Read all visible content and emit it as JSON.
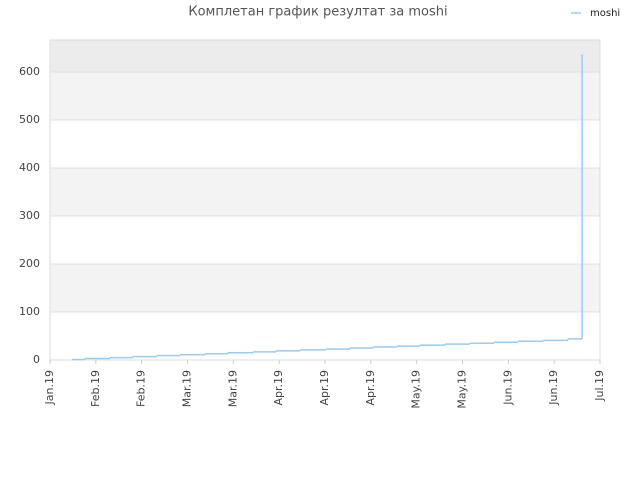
{
  "chart_data": {
    "type": "step-line",
    "title": "Комплетан график резултат за moshi",
    "x": [
      0.48,
      0.76,
      1.31,
      1.81,
      2.33,
      2.84,
      3.38,
      3.88,
      4.43,
      4.93,
      5.45,
      6.02,
      6.55,
      7.05,
      7.57,
      8.07,
      8.62,
      9.16,
      9.69,
      10.21,
      10.76,
      11.3,
      11.61
    ],
    "series": [
      {
        "name": "moshi",
        "color": "#99ccf2",
        "values": [
          1,
          3,
          5,
          7,
          9,
          11,
          13,
          15,
          17,
          19,
          21,
          23,
          25,
          27,
          29,
          31,
          33,
          35,
          37,
          39,
          41,
          44,
          635
        ]
      }
    ],
    "xlim": [
      0,
      12
    ],
    "xticks": [
      {
        "value": 0,
        "label": "Jan.19"
      },
      {
        "value": 1,
        "label": "Feb.19"
      },
      {
        "value": 2,
        "label": "Feb.19"
      },
      {
        "value": 3,
        "label": "Mar.19"
      },
      {
        "value": 4,
        "label": "Mar.19"
      },
      {
        "value": 5,
        "label": "Apr.19"
      },
      {
        "value": 6,
        "label": "Apr.19"
      },
      {
        "value": 7,
        "label": "Apr.19"
      },
      {
        "value": 8,
        "label": "May.19"
      },
      {
        "value": 9,
        "label": "May.19"
      },
      {
        "value": 10,
        "label": "Jun.19"
      },
      {
        "value": 11,
        "label": "Jun.19"
      },
      {
        "value": 12,
        "label": "Jul.19"
      }
    ],
    "ylim": [
      0,
      666.67
    ],
    "yticks": [
      0,
      100,
      200,
      300,
      400,
      500,
      600
    ],
    "grid": true,
    "legend": "top-right"
  }
}
